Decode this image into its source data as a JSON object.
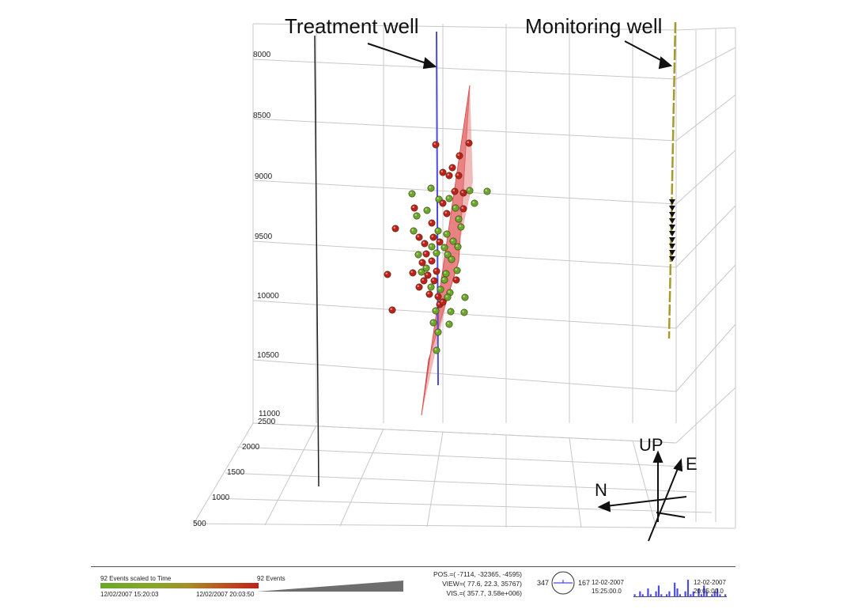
{
  "labels": {
    "treatment_well": "Treatment well",
    "monitoring_well": "Monitoring well"
  },
  "depth_axis": [
    "8000",
    "8500",
    "9000",
    "9500",
    "10000",
    "10500",
    "11000"
  ],
  "horizontal_axis": [
    "2500",
    "2000",
    "1500",
    "1000",
    "500"
  ],
  "compass": {
    "up": "UP",
    "east": "E",
    "north": "N"
  },
  "colors": {
    "treatment_well": "#4b4bdc",
    "monitoring_well": "#a89a2a",
    "fracture_plane": "#e35a5a",
    "event_early": "#6aa82a",
    "event_late": "#c0201a",
    "grid": "#c8c8c8"
  },
  "status_bar": {
    "legend_title": "92 Events scaled to Time",
    "legend_start": "12/02/2007 15:20:03",
    "legend_end": "12/02/2007 20:03:50",
    "events_count": "92 Events",
    "pos_readout": "POS.=( -7114, -32365, -4595)",
    "view_readout": "VIEW=( 77.6, 22.3, 35767)",
    "vis_readout": "VIS.=( 357.7, 3.58e+006)",
    "azimuth_left": "347",
    "azimuth_right": "167",
    "start_date": "12-02-2007",
    "start_time": "15:25:00.0",
    "end_date": "12-02-2007",
    "end_time": "20:05:00.0",
    "histogram": [
      1,
      0,
      2,
      1,
      0,
      3,
      1,
      0,
      2,
      4,
      1,
      0,
      1,
      2,
      0,
      5,
      3,
      1,
      0,
      2,
      6,
      1,
      2,
      0,
      3,
      1,
      4,
      2,
      0,
      1,
      2,
      3,
      1,
      0,
      1
    ]
  }
}
